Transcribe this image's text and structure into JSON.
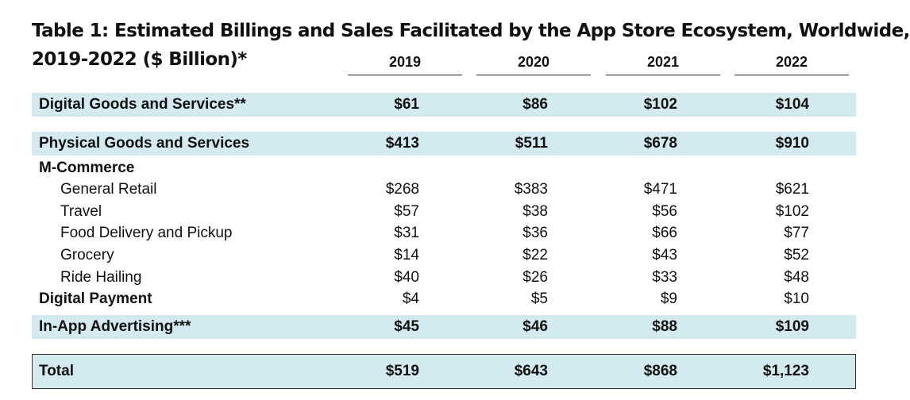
{
  "title": {
    "line1": "Table 1: Estimated Billings and Sales Facilitated by the App Store Ecosystem, Worldwide,",
    "line2": "2019-2022 ($ Billion)*"
  },
  "years": [
    "2019",
    "2020",
    "2021",
    "2022"
  ],
  "rows": [
    {
      "label": "Digital Goods and Services**",
      "values": [
        "$61",
        "$86",
        "$102",
        "$104"
      ]
    },
    {
      "label": "Physical Goods and Services",
      "values": [
        "$413",
        "$511",
        "$678",
        "$910"
      ]
    },
    {
      "label": "M-Commerce",
      "values": [
        "",
        "",
        "",
        ""
      ]
    },
    {
      "label": "General Retail",
      "values": [
        "$268",
        "$383",
        "$471",
        "$621"
      ]
    },
    {
      "label": "Travel",
      "values": [
        "$57",
        "$38",
        "$56",
        "$102"
      ]
    },
    {
      "label": "Food Delivery and Pickup",
      "values": [
        "$31",
        "$36",
        "$66",
        "$77"
      ]
    },
    {
      "label": "Grocery",
      "values": [
        "$14",
        "$22",
        "$43",
        "$52"
      ]
    },
    {
      "label": "Ride Hailing",
      "values": [
        "$40",
        "$26",
        "$33",
        "$48"
      ]
    },
    {
      "label": "Digital Payment",
      "values": [
        "$4",
        "$5",
        "$9",
        "$10"
      ]
    },
    {
      "label": "In-App Advertising***",
      "values": [
        "$45",
        "$46",
        "$88",
        "$109"
      ]
    },
    {
      "label": "Total",
      "values": [
        "$519",
        "$643",
        "$868",
        "$1,123"
      ]
    }
  ],
  "colors": {
    "band": "#d3ebf0",
    "text": "#111111",
    "rule": "#222222"
  }
}
